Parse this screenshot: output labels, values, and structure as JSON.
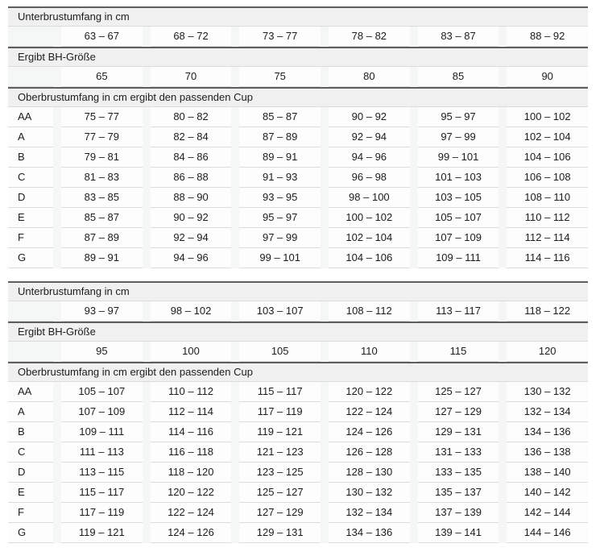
{
  "colors": {
    "page_background": "#ffffff",
    "header_background": "#f0f0f0",
    "header_top_border": "#5e5e60",
    "row_divider": "#dcdcdc",
    "cell_background": "#fdfdfd",
    "column_gap_background": "#f5f6f6",
    "text": "#1c1c1c"
  },
  "chart_data": [
    {
      "type": "table",
      "sections": [
        {
          "header": "Unterbrustumfang in cm",
          "rows": [
            [
              "",
              "63 – 67",
              "68 – 72",
              "73 – 77",
              "78 – 82",
              "83 – 87",
              "88 – 92"
            ]
          ]
        },
        {
          "header": "Ergibt BH-Größe",
          "rows": [
            [
              "",
              "65",
              "70",
              "75",
              "80",
              "85",
              "90"
            ]
          ]
        },
        {
          "header": "Oberbrustumfang in cm ergibt den passenden Cup",
          "rows": [
            [
              "AA",
              "75 – 77",
              "80 – 82",
              "85 – 87",
              "90 – 92",
              "95 – 97",
              "100 – 102"
            ],
            [
              "A",
              "77 – 79",
              "82 – 84",
              "87 – 89",
              "92 – 94",
              "97 – 99",
              "102 – 104"
            ],
            [
              "B",
              "79 – 81",
              "84 – 86",
              "89 – 91",
              "94 – 96",
              "99 – 101",
              "104 – 106"
            ],
            [
              "C",
              "81 – 83",
              "86 – 88",
              "91 – 93",
              "96 – 98",
              "101 – 103",
              "106 – 108"
            ],
            [
              "D",
              "83 – 85",
              "88 – 90",
              "93 – 95",
              "98 – 100",
              "103 – 105",
              "108 – 110"
            ],
            [
              "E",
              "85 – 87",
              "90 – 92",
              "95 – 97",
              "100 – 102",
              "105 – 107",
              "110 – 112"
            ],
            [
              "F",
              "87 – 89",
              "92 – 94",
              "97 – 99",
              "102 – 104",
              "107 – 109",
              "112 – 114"
            ],
            [
              "G",
              "89 – 91",
              "94 – 96",
              "99 – 101",
              "104 – 106",
              "109 – 111",
              "114 – 116"
            ]
          ]
        }
      ]
    },
    {
      "type": "table",
      "sections": [
        {
          "header": "Unterbrustumfang in cm",
          "rows": [
            [
              "",
              "93 – 97",
              "98 – 102",
              "103 – 107",
              "108 – 112",
              "113 – 117",
              "118 – 122"
            ]
          ]
        },
        {
          "header": "Ergibt BH-Größe",
          "rows": [
            [
              "",
              "95",
              "100",
              "105",
              "110",
              "115",
              "120"
            ]
          ]
        },
        {
          "header": "Oberbrustumfang in cm ergibt den passenden Cup",
          "rows": [
            [
              "AA",
              "105 – 107",
              "110 – 112",
              "115 – 117",
              "120 – 122",
              "125 – 127",
              "130 – 132"
            ],
            [
              "A",
              "107 – 109",
              "112 – 114",
              "117 – 119",
              "122 – 124",
              "127 – 129",
              "132 – 134"
            ],
            [
              "B",
              "109 – 111",
              "114 – 116",
              "119 – 121",
              "124 – 126",
              "129 – 131",
              "134 – 136"
            ],
            [
              "C",
              "111 – 113",
              "116 – 118",
              "121 – 123",
              "126 – 128",
              "131 – 133",
              "136 – 138"
            ],
            [
              "D",
              "113 – 115",
              "118 – 120",
              "123 – 125",
              "128 – 130",
              "133 – 135",
              "138 – 140"
            ],
            [
              "E",
              "115 – 117",
              "120 – 122",
              "125 – 127",
              "130 – 132",
              "135 – 137",
              "140 – 142"
            ],
            [
              "F",
              "117 – 119",
              "122 – 124",
              "127 – 129",
              "132 – 134",
              "137 – 139",
              "142 – 144"
            ],
            [
              "G",
              "119 – 121",
              "124 – 126",
              "129 – 131",
              "134 – 136",
              "139 – 141",
              "144 – 146"
            ]
          ]
        }
      ]
    }
  ]
}
